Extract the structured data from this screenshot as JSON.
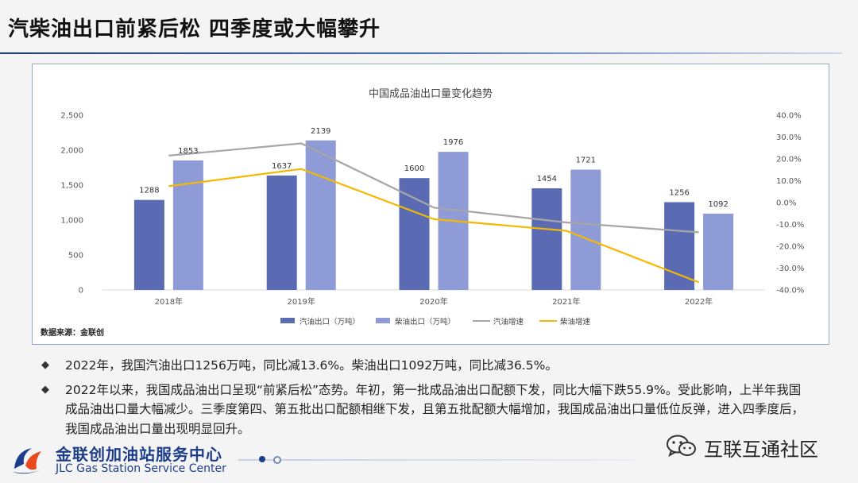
{
  "page": {
    "title": "汽柴油出口前紧后松 四季度或大幅攀升"
  },
  "chart_data": {
    "type": "bar",
    "title": "中国成品油出口量变化趋势",
    "source": "数据来源：金联创",
    "categories": [
      "2018年",
      "2019年",
      "2020年",
      "2021年",
      "2022年"
    ],
    "series": [
      {
        "name": "汽油出口（万吨）",
        "kind": "bar",
        "axis": "left",
        "values": [
          1288,
          1637,
          1600,
          1454,
          1256
        ],
        "color": "#5a6bb3"
      },
      {
        "name": "柴油出口（万吨）",
        "kind": "bar",
        "axis": "left",
        "values": [
          1853,
          2139,
          1976,
          1721,
          1092
        ],
        "color": "#8e9bd6"
      },
      {
        "name": "汽油增速",
        "kind": "line",
        "axis": "right",
        "values": [
          21.5,
          27.1,
          -2.3,
          -9.1,
          -13.6
        ],
        "color": "#a6a6a6"
      },
      {
        "name": "柴油增速",
        "kind": "line",
        "axis": "right",
        "values": [
          7.5,
          15.4,
          -7.6,
          -12.9,
          -36.5
        ],
        "color": "#f5b800"
      }
    ],
    "left_axis": {
      "ylim": [
        0,
        2500
      ],
      "ticks": [
        "0",
        "500",
        "1,000",
        "1,500",
        "2,000",
        "2,500"
      ],
      "tick_values": [
        0,
        500,
        1000,
        1500,
        2000,
        2500
      ]
    },
    "right_axis": {
      "ylim": [
        -40,
        40
      ],
      "ticks": [
        "-40.0%",
        "-30.0%",
        "-20.0%",
        "-10.0%",
        "0.0%",
        "10.0%",
        "20.0%",
        "30.0%",
        "40.0%"
      ],
      "tick_values": [
        -40,
        -30,
        -20,
        -10,
        0,
        10,
        20,
        30,
        40
      ]
    },
    "legend_position": "bottom",
    "grid": false
  },
  "bullets": [
    "2022年，我国汽油出口1256万吨，同比减13.6%。柴油出口1092万吨，同比减36.5%。",
    "2022年以来，我国成品油出口呈现“前紧后松”态势。年初，第一批成品油出口配额下发，同比大幅下跌55.9%。受此影响，上半年我国成品油出口量大幅减少。三季度第四、第五批出口配额相继下发，且第五批配额大幅增加，我国成品油出口量低位反弹，进入四季度后，我国成品油出口量出现明显回升。"
  ],
  "bullet_mark": "◆",
  "logo": {
    "name_cn": "金联创加油站服务中心",
    "name_en": "JLC Gas Station Service Center"
  },
  "wechat": {
    "label": "互联互通社区",
    "icon": "wechat-icon"
  },
  "colors": {
    "title_bar": "#1f3b7a",
    "logo_blue": "#1d3d8a"
  }
}
